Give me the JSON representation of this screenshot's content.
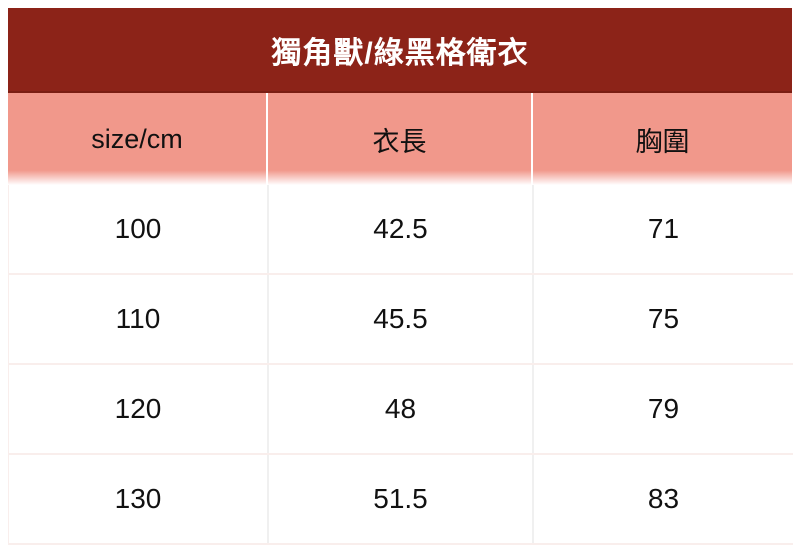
{
  "chart_data": {
    "type": "table",
    "title": "獨角獸/綠黑格衛衣",
    "columns": [
      "size/cm",
      "衣長",
      "胸圍"
    ],
    "rows": [
      [
        "100",
        "42.5",
        "71"
      ],
      [
        "110",
        "45.5",
        "75"
      ],
      [
        "120",
        "48",
        "79"
      ],
      [
        "130",
        "51.5",
        "83"
      ]
    ],
    "units": "cm",
    "layout": "title bar + 3-column size table, 4 size rows"
  },
  "colors": {
    "title_bg": "#8c2318",
    "title_bg_edge": "#7a1e13",
    "title_text": "#ffffff",
    "header_bg": "#f1988b",
    "row_divider": "#f9eeec",
    "col_divider": "#f0f0f0",
    "text": "#111111"
  }
}
